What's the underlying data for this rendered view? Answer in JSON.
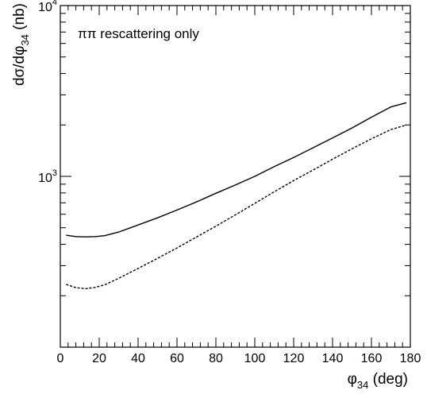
{
  "chart_data": {
    "type": "line",
    "annotation": "ππ rescattering only",
    "xlabel": {
      "symbol": "φ",
      "sub": "34",
      "rest": " (deg)"
    },
    "ylabel": {
      "pre": "dσ/dφ",
      "sub": "34",
      "rest": " (nb)"
    },
    "x_range": [
      0,
      180
    ],
    "y_range": [
      100,
      10000
    ],
    "y_scale": "log",
    "x_ticks": [
      0,
      20,
      40,
      60,
      80,
      100,
      120,
      140,
      160,
      180
    ],
    "y_tick_labels": [
      {
        "value": 1000,
        "base": "10",
        "exp": "3"
      },
      {
        "value": 10000,
        "base": "10",
        "exp": "4"
      }
    ],
    "series": [
      {
        "style": "solid",
        "x": [
          3,
          8,
          13,
          18,
          23,
          30,
          40,
          50,
          60,
          70,
          80,
          90,
          100,
          110,
          120,
          130,
          140,
          150,
          160,
          170,
          178
        ],
        "y": [
          452,
          444,
          442,
          444,
          450,
          472,
          519,
          572,
          635,
          708,
          796,
          890,
          1000,
          1140,
          1290,
          1470,
          1680,
          1920,
          2220,
          2550,
          2700
        ]
      },
      {
        "style": "dashed",
        "x": [
          3,
          8,
          13,
          18,
          23,
          30,
          40,
          50,
          60,
          70,
          80,
          90,
          100,
          110,
          120,
          130,
          140,
          150,
          160,
          170,
          178
        ],
        "y": [
          233,
          223,
          220,
          224,
          232,
          253,
          289,
          331,
          381,
          441,
          511,
          595,
          695,
          812,
          945,
          1090,
          1260,
          1450,
          1660,
          1880,
          2000
        ]
      }
    ]
  }
}
